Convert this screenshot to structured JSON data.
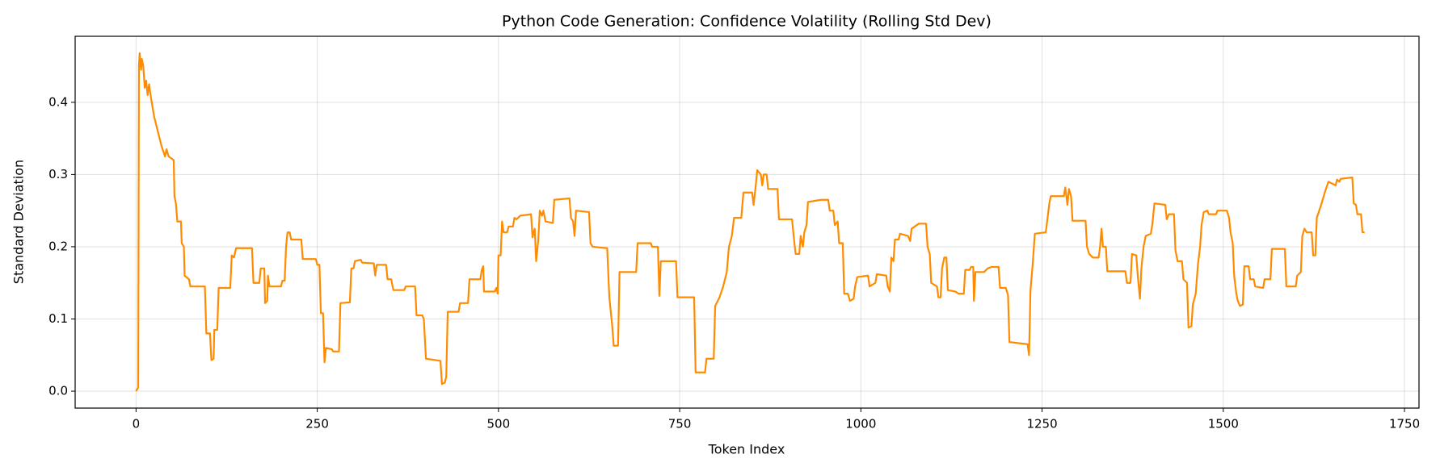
{
  "chart_data": {
    "type": "line",
    "title": "Python Code Generation: Confidence Volatility (Rolling Std Dev)",
    "xlabel": "Token Index",
    "ylabel": "Standard Deviation",
    "color": "#ff8c00",
    "grid": true,
    "xlim": [
      -84,
      1770
    ],
    "ylim": [
      -0.0234,
      0.4914
    ],
    "xticks": [
      0,
      250,
      500,
      750,
      1000,
      1250,
      1500,
      1750
    ],
    "yticks": [
      {
        "value": 0,
        "label": "0.0"
      },
      0.1,
      0.2,
      0.3,
      0.4
    ],
    "x": [
      0,
      3,
      4,
      5,
      7,
      8,
      10,
      12,
      14,
      16,
      18,
      20,
      25,
      30,
      35,
      40,
      42,
      45,
      52,
      53,
      55,
      57,
      62,
      63,
      66,
      67,
      73,
      75,
      95,
      97,
      102,
      104,
      107,
      108,
      112,
      114,
      130,
      132,
      135,
      138,
      160,
      162,
      170,
      172,
      177,
      178,
      181,
      182,
      184,
      200,
      202,
      205,
      207,
      209,
      212,
      214,
      228,
      230,
      248,
      250,
      253,
      255,
      258,
      260,
      262,
      270,
      272,
      280,
      282,
      295,
      297,
      300,
      302,
      310,
      312,
      328,
      330,
      332,
      345,
      347,
      352,
      355,
      370,
      372,
      385,
      387,
      395,
      397,
      400,
      420,
      422,
      426,
      428,
      430,
      445,
      447,
      458,
      460,
      475,
      477,
      479,
      480,
      495,
      497,
      499,
      500,
      503,
      505,
      507,
      512,
      514,
      520,
      522,
      525,
      530,
      545,
      547,
      550,
      552,
      555,
      557,
      560,
      562,
      565,
      575,
      577,
      598,
      600,
      603,
      605,
      607,
      625,
      627,
      630,
      650,
      653,
      657,
      659,
      665,
      667,
      690,
      692,
      710,
      712,
      720,
      722,
      724,
      745,
      747,
      770,
      772,
      785,
      787,
      797,
      799,
      805,
      810,
      815,
      818,
      822,
      825,
      835,
      838,
      850,
      852,
      855,
      857,
      862,
      864,
      866,
      870,
      872,
      885,
      887,
      905,
      908,
      910,
      915,
      917,
      920,
      922,
      925,
      927,
      945,
      955,
      957,
      962,
      964,
      968,
      970,
      975,
      977,
      982,
      985,
      990,
      992,
      995,
      1010,
      1012,
      1020,
      1022,
      1035,
      1037,
      1040,
      1042,
      1045,
      1047,
      1052,
      1054,
      1065,
      1068,
      1070,
      1080,
      1090,
      1092,
      1095,
      1097,
      1105,
      1107,
      1110,
      1112,
      1115,
      1118,
      1120,
      1130,
      1135,
      1142,
      1144,
      1150,
      1152,
      1155,
      1156,
      1158,
      1170,
      1175,
      1180,
      1190,
      1192,
      1200,
      1203,
      1205,
      1230,
      1232,
      1234,
      1237,
      1240,
      1255,
      1257,
      1260,
      1262,
      1280,
      1282,
      1285,
      1287,
      1290,
      1292,
      1310,
      1312,
      1315,
      1320,
      1328,
      1330,
      1332,
      1334,
      1338,
      1340,
      1365,
      1367,
      1372,
      1374,
      1380,
      1382,
      1385,
      1387,
      1390,
      1393,
      1400,
      1402,
      1405,
      1420,
      1422,
      1425,
      1432,
      1434,
      1437,
      1443,
      1445,
      1450,
      1452,
      1456,
      1458,
      1462,
      1465,
      1468,
      1470,
      1473,
      1478,
      1480,
      1490,
      1492,
      1505,
      1508,
      1510,
      1513,
      1515,
      1518,
      1520,
      1523,
      1527,
      1529,
      1535,
      1537,
      1542,
      1544,
      1555,
      1557,
      1565,
      1567,
      1585,
      1587,
      1600,
      1602,
      1607,
      1609,
      1612,
      1615,
      1622,
      1624,
      1627,
      1629,
      1635,
      1640,
      1645,
      1655,
      1657,
      1660,
      1662,
      1678,
      1680,
      1683,
      1685,
      1688,
      1690,
      1692,
      1695
    ],
    "values": [
      0,
      0.005,
      0.45,
      0.468,
      0.445,
      0.46,
      0.45,
      0.42,
      0.43,
      0.41,
      0.425,
      0.41,
      0.38,
      0.36,
      0.34,
      0.325,
      0.335,
      0.325,
      0.32,
      0.27,
      0.26,
      0.235,
      0.235,
      0.205,
      0.2,
      0.16,
      0.155,
      0.145,
      0.145,
      0.08,
      0.08,
      0.043,
      0.045,
      0.085,
      0.085,
      0.143,
      0.143,
      0.188,
      0.185,
      0.198,
      0.198,
      0.15,
      0.15,
      0.17,
      0.17,
      0.122,
      0.125,
      0.16,
      0.145,
      0.145,
      0.153,
      0.153,
      0.2,
      0.22,
      0.22,
      0.21,
      0.21,
      0.183,
      0.183,
      0.175,
      0.175,
      0.108,
      0.108,
      0.04,
      0.06,
      0.058,
      0.055,
      0.055,
      0.122,
      0.123,
      0.17,
      0.17,
      0.18,
      0.182,
      0.178,
      0.177,
      0.16,
      0.175,
      0.175,
      0.155,
      0.155,
      0.14,
      0.14,
      0.145,
      0.145,
      0.105,
      0.105,
      0.1,
      0.045,
      0.042,
      0.01,
      0.012,
      0.02,
      0.11,
      0.11,
      0.122,
      0.122,
      0.155,
      0.155,
      0.168,
      0.173,
      0.138,
      0.138,
      0.143,
      0.135,
      0.188,
      0.188,
      0.235,
      0.22,
      0.22,
      0.228,
      0.228,
      0.24,
      0.238,
      0.243,
      0.245,
      0.213,
      0.225,
      0.18,
      0.21,
      0.25,
      0.243,
      0.25,
      0.235,
      0.233,
      0.265,
      0.267,
      0.24,
      0.235,
      0.215,
      0.25,
      0.248,
      0.205,
      0.2,
      0.198,
      0.13,
      0.09,
      0.063,
      0.063,
      0.165,
      0.165,
      0.205,
      0.205,
      0.2,
      0.2,
      0.132,
      0.18,
      0.18,
      0.13,
      0.13,
      0.026,
      0.026,
      0.045,
      0.045,
      0.118,
      0.13,
      0.145,
      0.165,
      0.2,
      0.215,
      0.24,
      0.24,
      0.275,
      0.275,
      0.258,
      0.285,
      0.306,
      0.3,
      0.285,
      0.3,
      0.3,
      0.28,
      0.28,
      0.238,
      0.238,
      0.208,
      0.19,
      0.19,
      0.215,
      0.2,
      0.22,
      0.23,
      0.262,
      0.265,
      0.265,
      0.25,
      0.25,
      0.23,
      0.235,
      0.205,
      0.205,
      0.135,
      0.135,
      0.125,
      0.128,
      0.145,
      0.158,
      0.16,
      0.145,
      0.15,
      0.162,
      0.16,
      0.145,
      0.138,
      0.185,
      0.18,
      0.21,
      0.21,
      0.218,
      0.215,
      0.208,
      0.225,
      0.232,
      0.232,
      0.2,
      0.19,
      0.15,
      0.145,
      0.13,
      0.13,
      0.17,
      0.185,
      0.185,
      0.14,
      0.138,
      0.135,
      0.135,
      0.168,
      0.168,
      0.172,
      0.172,
      0.125,
      0.165,
      0.165,
      0.17,
      0.172,
      0.172,
      0.143,
      0.143,
      0.133,
      0.068,
      0.065,
      0.05,
      0.14,
      0.175,
      0.218,
      0.22,
      0.235,
      0.26,
      0.27,
      0.27,
      0.282,
      0.258,
      0.28,
      0.27,
      0.236,
      0.236,
      0.2,
      0.19,
      0.185,
      0.185,
      0.2,
      0.225,
      0.2,
      0.2,
      0.166,
      0.166,
      0.15,
      0.15,
      0.19,
      0.188,
      0.16,
      0.128,
      0.17,
      0.2,
      0.215,
      0.218,
      0.23,
      0.26,
      0.258,
      0.238,
      0.245,
      0.245,
      0.195,
      0.18,
      0.18,
      0.155,
      0.15,
      0.088,
      0.09,
      0.12,
      0.135,
      0.175,
      0.2,
      0.23,
      0.248,
      0.25,
      0.245,
      0.245,
      0.25,
      0.25,
      0.24,
      0.22,
      0.205,
      0.16,
      0.135,
      0.125,
      0.118,
      0.12,
      0.173,
      0.173,
      0.155,
      0.155,
      0.145,
      0.143,
      0.155,
      0.155,
      0.197,
      0.197,
      0.145,
      0.145,
      0.16,
      0.165,
      0.215,
      0.225,
      0.22,
      0.22,
      0.188,
      0.188,
      0.24,
      0.258,
      0.275,
      0.29,
      0.285,
      0.293,
      0.29,
      0.294,
      0.296,
      0.26,
      0.258,
      0.245,
      0.245,
      0.245,
      0.22,
      0.22
    ]
  }
}
